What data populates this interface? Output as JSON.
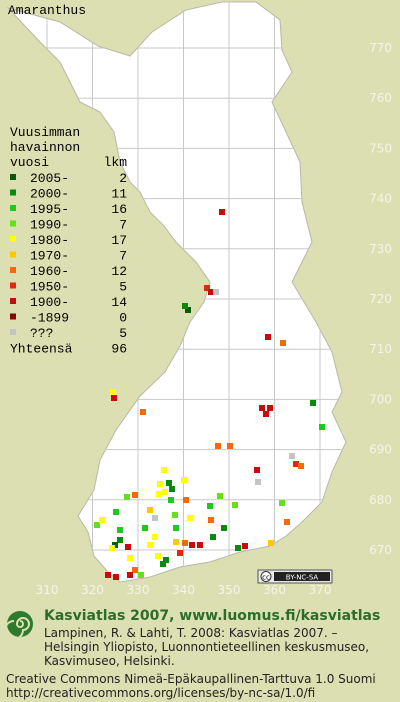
{
  "title": "Amaranthus",
  "legend": {
    "heading": [
      "Vuusimman",
      "havainnon",
      "vuosi"
    ],
    "count_heading": "lkm",
    "rows": [
      {
        "label": "2005-",
        "count": 2,
        "color": "#0b5a0b"
      },
      {
        "label": "2000-",
        "count": 11,
        "color": "#0a8a0a"
      },
      {
        "label": "1995-",
        "count": 16,
        "color": "#1ec81e"
      },
      {
        "label": "1990-",
        "count": 7,
        "color": "#66e01a"
      },
      {
        "label": "1980-",
        "count": 17,
        "color": "#ffff00"
      },
      {
        "label": "1970-",
        "count": 7,
        "color": "#ffc800"
      },
      {
        "label": "1960-",
        "count": 12,
        "color": "#f26a10"
      },
      {
        "label": "1950-",
        "count": 5,
        "color": "#e02a10"
      },
      {
        "label": "1900-",
        "count": 14,
        "color": "#c80c0c"
      },
      {
        "label": "-1899",
        "count": 0,
        "color": "#840808"
      },
      {
        "label": "???",
        "count": 5,
        "color": "#c4c4c4"
      }
    ],
    "total": {
      "label": "Yhteensä",
      "count": 96
    }
  },
  "grid": {
    "x_labels": [
      310,
      320,
      330,
      340,
      350,
      360,
      370
    ],
    "y_labels": [
      770,
      760,
      750,
      740,
      730,
      720,
      710,
      700,
      690,
      680,
      670
    ]
  },
  "badge": {
    "cc": "cc",
    "text": "BY-NC-SA"
  },
  "footer": {
    "heading": "Kasviatlas 2007, www.luomus.fi/kasviatlas",
    "lines": [
      "Lampinen, R. & Lahti, T. 2008: Kasviatlas 2007. –",
      "Helsingin Yliopisto, Luonnontieteellinen keskusmuseo,",
      "Kasvimuseo, Helsinki."
    ],
    "license": [
      "Creative Commons Nimeä-Epäkaupallinen-Tarttuva 1.0 Suomi",
      "http://creativecommons.org/licenses/by-nc-sa/1.0/fi"
    ]
  }
}
